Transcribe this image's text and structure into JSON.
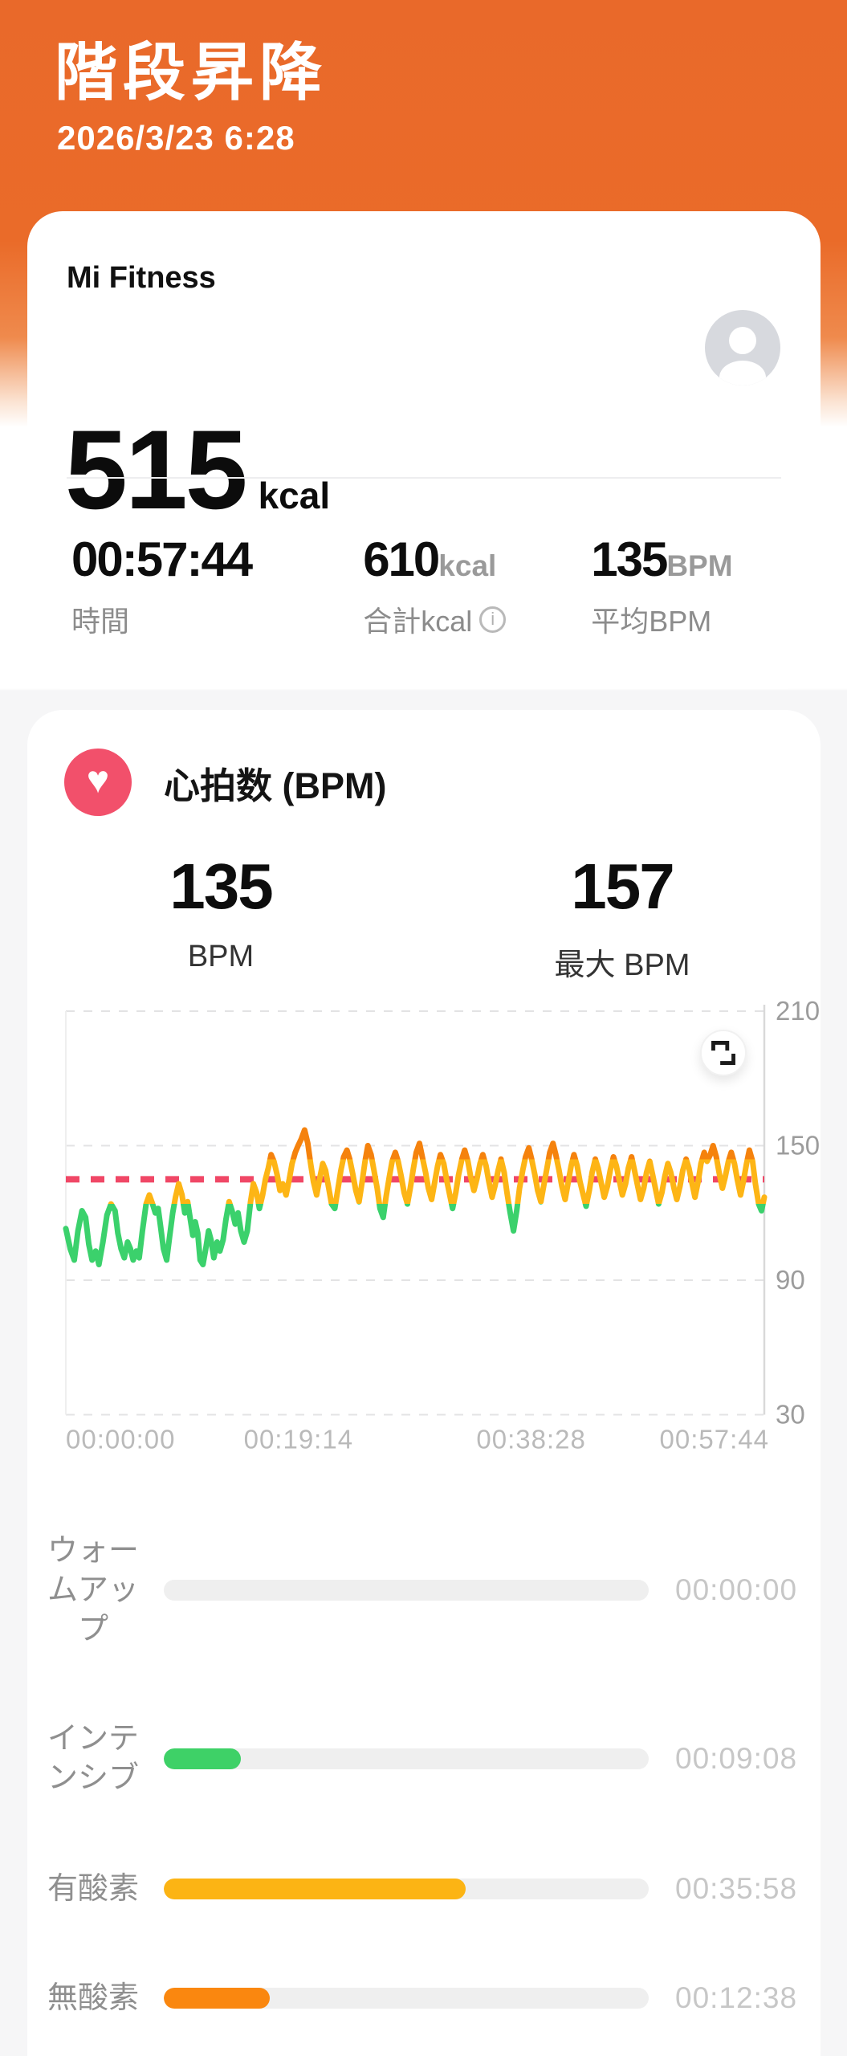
{
  "colors": {
    "header_orange": "#e9692a",
    "heart_badge": "#f2506b",
    "average_line": "#f04766",
    "zone_green": "#3ed167",
    "zone_amber": "#fcb414",
    "zone_orange": "#fa870f",
    "track_gray": "#efefef"
  },
  "header": {
    "title": "階段昇降",
    "datetime": "2026/3/23 6:28"
  },
  "summary_card": {
    "app_name": "Mi Fitness",
    "calories_value": "515",
    "calories_unit": "kcal",
    "stats": [
      {
        "value": "00:57:44",
        "unit": "",
        "label": "時間"
      },
      {
        "value": "610",
        "unit": "kcal",
        "label": "合計kcal"
      },
      {
        "value": "135",
        "unit": "BPM",
        "label": "平均BPM"
      }
    ],
    "info_icon_glyph": "i"
  },
  "heart_card": {
    "title": "心拍数 (BPM)",
    "heart_icon_glyph": "♥",
    "metrics": [
      {
        "value": "135",
        "label": "BPM"
      },
      {
        "value": "157",
        "label": "最大 BPM"
      }
    ]
  },
  "chart_data": {
    "type": "line",
    "title": "心拍数 (BPM)",
    "ylabel": "BPM",
    "ylim": [
      30,
      210
    ],
    "y_ticks": [
      210,
      150,
      90,
      30
    ],
    "y_axis_side": "right",
    "grid": "dashed-horizontal",
    "duration_seconds": 3464,
    "x_ticks": [
      {
        "label": "00:00:00",
        "seconds": 0,
        "anchor": "start"
      },
      {
        "label": "00:19:14",
        "seconds": 1154,
        "anchor": "middle"
      },
      {
        "label": "00:38:28",
        "seconds": 2308,
        "anchor": "middle"
      },
      {
        "label": "00:57:44",
        "seconds": 3464,
        "anchor": "end"
      }
    ],
    "average_line": {
      "value": 135,
      "color": "#f04766",
      "style": "dashed"
    },
    "color_zones": [
      {
        "min_bpm": 144,
        "color": "#f5820d"
      },
      {
        "min_bpm": 124,
        "color": "#fdb515"
      },
      {
        "min_bpm": 0,
        "color": "#3bd16c"
      }
    ],
    "series": [
      {
        "name": "heart_rate_bpm",
        "points": [
          [
            0,
            113
          ],
          [
            22,
            104
          ],
          [
            42,
            99
          ],
          [
            60,
            112
          ],
          [
            80,
            121
          ],
          [
            98,
            118
          ],
          [
            114,
            106
          ],
          [
            130,
            99
          ],
          [
            148,
            103
          ],
          [
            164,
            97
          ],
          [
            184,
            107
          ],
          [
            204,
            119
          ],
          [
            224,
            124
          ],
          [
            244,
            121
          ],
          [
            258,
            111
          ],
          [
            274,
            104
          ],
          [
            290,
            100
          ],
          [
            306,
            107
          ],
          [
            320,
            104
          ],
          [
            334,
            99
          ],
          [
            350,
            103
          ],
          [
            364,
            100
          ],
          [
            380,
            112
          ],
          [
            398,
            124
          ],
          [
            414,
            128
          ],
          [
            430,
            124
          ],
          [
            444,
            120
          ],
          [
            458,
            122
          ],
          [
            470,
            114
          ],
          [
            484,
            104
          ],
          [
            500,
            99
          ],
          [
            514,
            109
          ],
          [
            530,
            120
          ],
          [
            544,
            127
          ],
          [
            560,
            133
          ],
          [
            576,
            128
          ],
          [
            590,
            120
          ],
          [
            604,
            125
          ],
          [
            616,
            118
          ],
          [
            630,
            110
          ],
          [
            642,
            116
          ],
          [
            654,
            111
          ],
          [
            666,
            99
          ],
          [
            680,
            97
          ],
          [
            694,
            104
          ],
          [
            708,
            112
          ],
          [
            720,
            108
          ],
          [
            734,
            100
          ],
          [
            750,
            107
          ],
          [
            764,
            103
          ],
          [
            780,
            108
          ],
          [
            794,
            117
          ],
          [
            810,
            125
          ],
          [
            824,
            121
          ],
          [
            840,
            115
          ],
          [
            854,
            120
          ],
          [
            868,
            112
          ],
          [
            884,
            107
          ],
          [
            900,
            112
          ],
          [
            916,
            125
          ],
          [
            930,
            133
          ],
          [
            946,
            129
          ],
          [
            960,
            122
          ],
          [
            976,
            128
          ],
          [
            990,
            135
          ],
          [
            1004,
            140
          ],
          [
            1018,
            146
          ],
          [
            1032,
            143
          ],
          [
            1048,
            137
          ],
          [
            1062,
            130
          ],
          [
            1076,
            133
          ],
          [
            1092,
            128
          ],
          [
            1108,
            135
          ],
          [
            1122,
            142
          ],
          [
            1138,
            147
          ],
          [
            1152,
            150
          ],
          [
            1168,
            153
          ],
          [
            1184,
            157
          ],
          [
            1200,
            151
          ],
          [
            1214,
            142
          ],
          [
            1228,
            134
          ],
          [
            1244,
            128
          ],
          [
            1258,
            135
          ],
          [
            1274,
            142
          ],
          [
            1288,
            139
          ],
          [
            1304,
            131
          ],
          [
            1318,
            124
          ],
          [
            1334,
            122
          ],
          [
            1348,
            130
          ],
          [
            1364,
            139
          ],
          [
            1378,
            145
          ],
          [
            1394,
            148
          ],
          [
            1408,
            144
          ],
          [
            1424,
            137
          ],
          [
            1438,
            130
          ],
          [
            1454,
            125
          ],
          [
            1468,
            133
          ],
          [
            1484,
            143
          ],
          [
            1498,
            150
          ],
          [
            1514,
            146
          ],
          [
            1528,
            139
          ],
          [
            1544,
            131
          ],
          [
            1558,
            122
          ],
          [
            1574,
            118
          ],
          [
            1588,
            127
          ],
          [
            1604,
            136
          ],
          [
            1618,
            143
          ],
          [
            1634,
            147
          ],
          [
            1648,
            143
          ],
          [
            1664,
            136
          ],
          [
            1678,
            129
          ],
          [
            1694,
            124
          ],
          [
            1708,
            131
          ],
          [
            1724,
            140
          ],
          [
            1738,
            147
          ],
          [
            1754,
            151
          ],
          [
            1768,
            145
          ],
          [
            1784,
            138
          ],
          [
            1798,
            131
          ],
          [
            1814,
            126
          ],
          [
            1828,
            133
          ],
          [
            1844,
            141
          ],
          [
            1858,
            146
          ],
          [
            1874,
            142
          ],
          [
            1888,
            135
          ],
          [
            1904,
            128
          ],
          [
            1918,
            122
          ],
          [
            1934,
            129
          ],
          [
            1948,
            137
          ],
          [
            1964,
            144
          ],
          [
            1978,
            148
          ],
          [
            1994,
            143
          ],
          [
            2008,
            136
          ],
          [
            2024,
            130
          ],
          [
            2038,
            135
          ],
          [
            2054,
            142
          ],
          [
            2068,
            146
          ],
          [
            2084,
            141
          ],
          [
            2098,
            134
          ],
          [
            2114,
            127
          ],
          [
            2128,
            132
          ],
          [
            2144,
            139
          ],
          [
            2158,
            144
          ],
          [
            2174,
            138
          ],
          [
            2188,
            129
          ],
          [
            2204,
            120
          ],
          [
            2220,
            112
          ],
          [
            2236,
            121
          ],
          [
            2250,
            131
          ],
          [
            2266,
            139
          ],
          [
            2280,
            145
          ],
          [
            2296,
            149
          ],
          [
            2310,
            144
          ],
          [
            2326,
            137
          ],
          [
            2340,
            130
          ],
          [
            2356,
            125
          ],
          [
            2370,
            132
          ],
          [
            2386,
            140
          ],
          [
            2400,
            147
          ],
          [
            2416,
            151
          ],
          [
            2430,
            146
          ],
          [
            2446,
            139
          ],
          [
            2460,
            132
          ],
          [
            2476,
            126
          ],
          [
            2490,
            133
          ],
          [
            2506,
            141
          ],
          [
            2520,
            146
          ],
          [
            2536,
            141
          ],
          [
            2550,
            134
          ],
          [
            2566,
            128
          ],
          [
            2580,
            123
          ],
          [
            2596,
            130
          ],
          [
            2610,
            138
          ],
          [
            2626,
            144
          ],
          [
            2640,
            140
          ],
          [
            2656,
            133
          ],
          [
            2670,
            127
          ],
          [
            2686,
            132
          ],
          [
            2700,
            139
          ],
          [
            2716,
            145
          ],
          [
            2730,
            141
          ],
          [
            2746,
            134
          ],
          [
            2760,
            128
          ],
          [
            2776,
            133
          ],
          [
            2790,
            140
          ],
          [
            2806,
            145
          ],
          [
            2820,
            139
          ],
          [
            2836,
            132
          ],
          [
            2850,
            126
          ],
          [
            2866,
            131
          ],
          [
            2880,
            138
          ],
          [
            2896,
            143
          ],
          [
            2910,
            137
          ],
          [
            2926,
            130
          ],
          [
            2940,
            124
          ],
          [
            2956,
            129
          ],
          [
            2970,
            136
          ],
          [
            2986,
            142
          ],
          [
            3000,
            138
          ],
          [
            3016,
            131
          ],
          [
            3030,
            126
          ],
          [
            3046,
            132
          ],
          [
            3060,
            139
          ],
          [
            3076,
            144
          ],
          [
            3090,
            140
          ],
          [
            3106,
            133
          ],
          [
            3120,
            127
          ],
          [
            3136,
            134
          ],
          [
            3150,
            142
          ],
          [
            3166,
            147
          ],
          [
            3180,
            143
          ],
          [
            3196,
            146
          ],
          [
            3210,
            150
          ],
          [
            3226,
            145
          ],
          [
            3240,
            138
          ],
          [
            3256,
            131
          ],
          [
            3270,
            136
          ],
          [
            3286,
            143
          ],
          [
            3300,
            147
          ],
          [
            3316,
            142
          ],
          [
            3330,
            135
          ],
          [
            3346,
            128
          ],
          [
            3360,
            134
          ],
          [
            3376,
            142
          ],
          [
            3390,
            148
          ],
          [
            3406,
            143
          ],
          [
            3420,
            133
          ],
          [
            3436,
            124
          ],
          [
            3450,
            121
          ],
          [
            3464,
            127
          ]
        ]
      }
    ]
  },
  "zones": {
    "total_seconds": 3464,
    "rows": [
      {
        "label": "ウォームアップ",
        "value": "00:00:00",
        "seconds": 0,
        "color": null
      },
      {
        "label": "インテンシブ",
        "value": "00:09:08",
        "seconds": 548,
        "color": "#3ed167"
      },
      {
        "label": "有酸素",
        "value": "00:35:58",
        "seconds": 2158,
        "color": "#fcb414"
      },
      {
        "label": "無酸素",
        "value": "00:12:38",
        "seconds": 758,
        "color": "#fa870f"
      }
    ]
  }
}
